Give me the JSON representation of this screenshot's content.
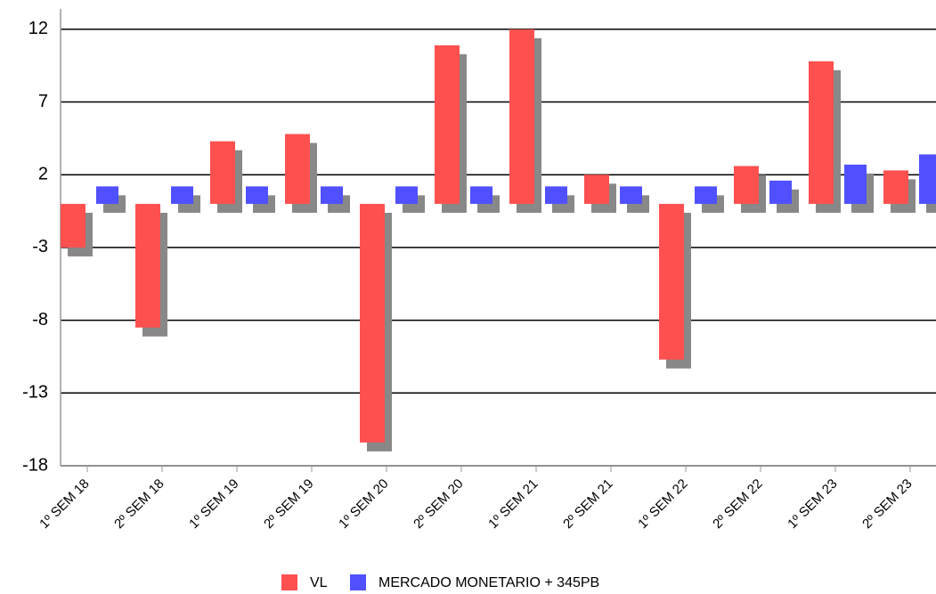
{
  "chart_data": {
    "type": "bar",
    "categories": [
      "1º SEM 18",
      "2º SEM 18",
      "1º SEM 19",
      "2º SEM 19",
      "1º SEM 20",
      "2º SEM 20",
      "1º SEM 21",
      "2º SEM 21",
      "1º SEM 22",
      "2º SEM 22",
      "1º SEM 23",
      "2º SEM 23"
    ],
    "series": [
      {
        "name": "VL",
        "color": "#ff5050",
        "values": [
          -3.0,
          -8.5,
          4.3,
          4.8,
          -16.4,
          10.9,
          12.0,
          2.0,
          -10.7,
          2.6,
          9.8,
          2.3
        ]
      },
      {
        "name": "MERCADO MONETARIO + 345PB",
        "color": "#5050ff",
        "values": [
          1.2,
          1.2,
          1.2,
          1.2,
          1.2,
          1.2,
          1.2,
          1.2,
          1.2,
          1.6,
          2.7,
          3.4
        ]
      }
    ],
    "ylim": [
      -18,
      13.4
    ],
    "yticks": [
      -18,
      -13,
      -8,
      -3,
      2,
      7,
      12
    ],
    "grid": true,
    "legend": "bottom"
  }
}
